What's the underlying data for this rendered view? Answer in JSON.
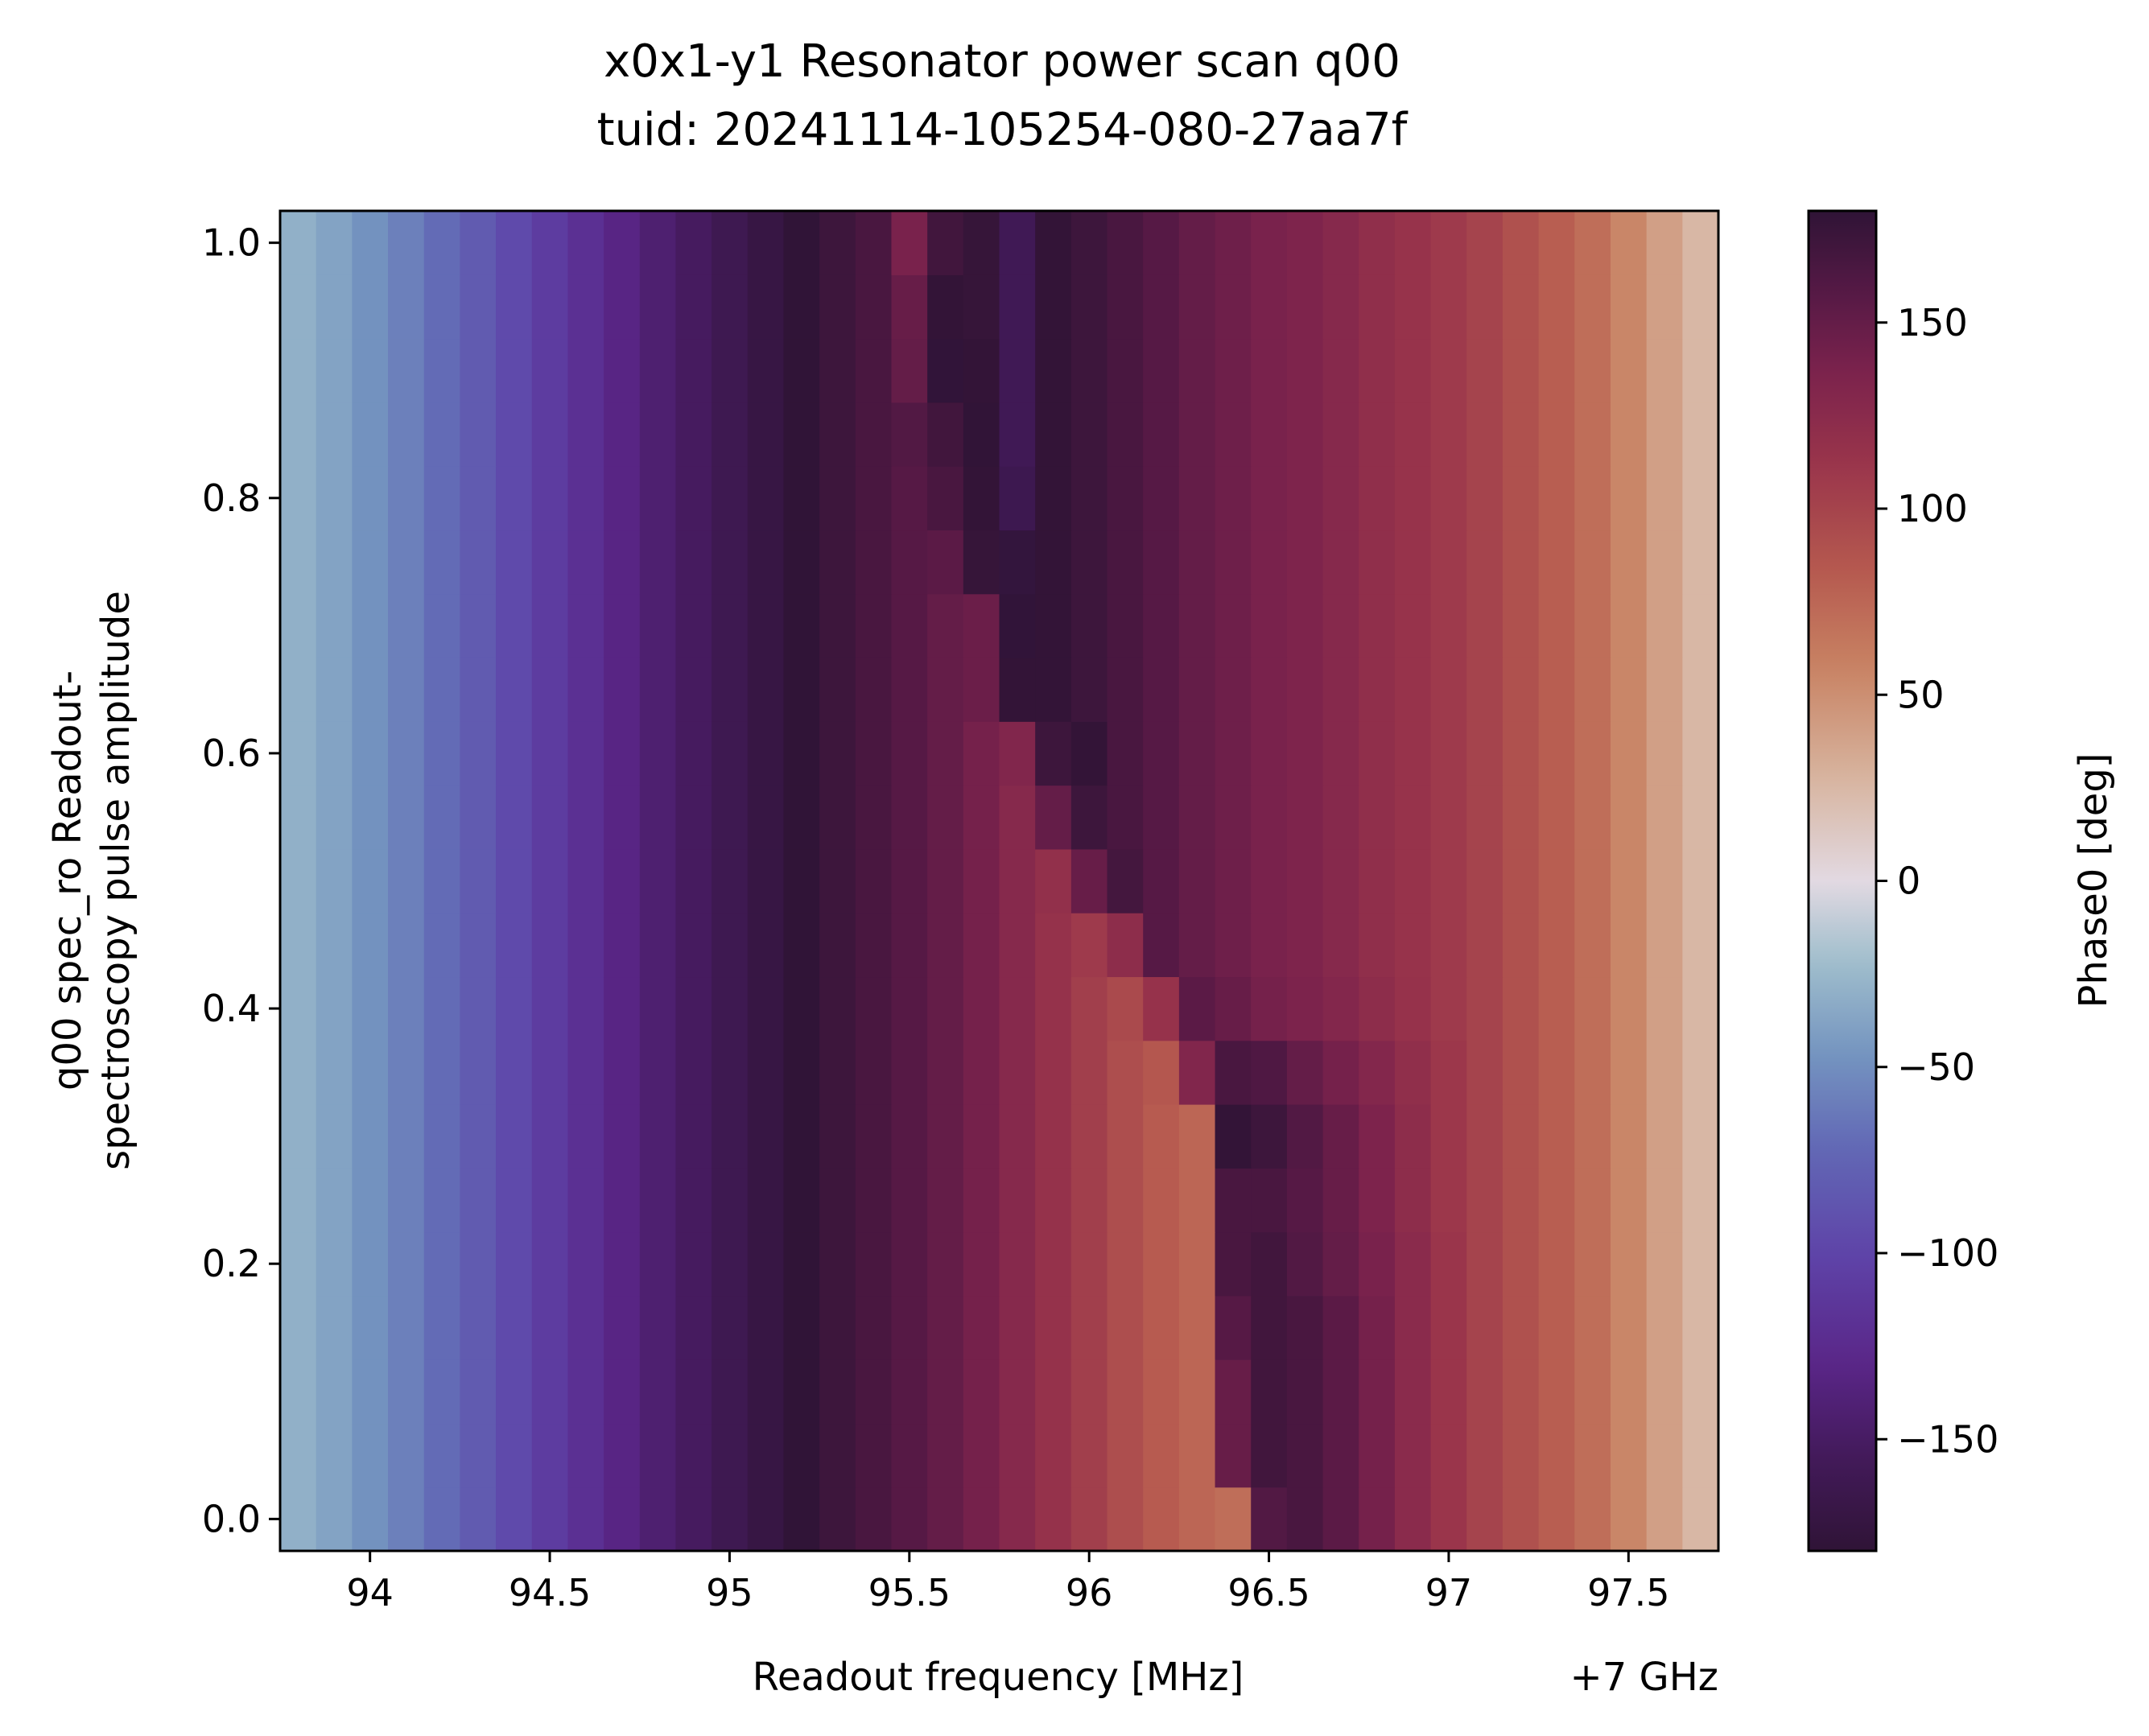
{
  "chart_data": {
    "type": "heatmap",
    "title": [
      "x0x1-y1 Resonator power scan q00",
      "tuid: 20241114-105254-080-27aa7f"
    ],
    "xlabel": "Readout frequency [MHz]",
    "x_offset_label": "+7 GHz",
    "ylabel": [
      "q00 spec_ro Readout-",
      "spectroscopy pulse amplitude"
    ],
    "colorbar_label": "Phase0 [deg]",
    "xlim": [
      93.75,
      97.75
    ],
    "ylim": [
      -0.025,
      1.025
    ],
    "clim": [
      -180,
      180
    ],
    "colormap": "twilight_shifted",
    "x_ticks": [
      94,
      94.5,
      95,
      95.5,
      96,
      96.5,
      97,
      97.5
    ],
    "x_ticklabels": [
      "94",
      "94.5",
      "95",
      "95.5",
      "96",
      "96.5",
      "97",
      "97.5"
    ],
    "y_ticks": [
      0.0,
      0.2,
      0.4,
      0.6,
      0.8,
      1.0
    ],
    "y_ticklabels": [
      "0.0",
      "0.2",
      "0.4",
      "0.6",
      "0.8",
      "1.0"
    ],
    "colorbar_ticks": [
      150,
      100,
      50,
      0,
      -50,
      -100,
      -150
    ],
    "colorbar_ticklabels": [
      "150",
      "100",
      "50",
      "0",
      "−50",
      "−100",
      "−150"
    ],
    "x_start": 93.8,
    "x_step": 0.1,
    "n_x": 40,
    "y_values": [
      0.0,
      0.05,
      0.1,
      0.15,
      0.2,
      0.25,
      0.3,
      0.35,
      0.4,
      0.45,
      0.5,
      0.55,
      0.6,
      0.65,
      0.7,
      0.75,
      0.8,
      0.85,
      0.9,
      0.95,
      1.0
    ],
    "phase_values": [
      [
        -30,
        -38,
        -48,
        -58,
        -70,
        -82,
        -95,
        -108,
        -120,
        -132,
        -143,
        -152,
        -161,
        -170,
        -179,
        172,
        165,
        158,
        150,
        140,
        128,
        116,
        104,
        92,
        82,
        75,
        70,
        160,
        165,
        155,
        140,
        125,
        112,
        100,
        90,
        80,
        70,
        55,
        40,
        25
      ],
      [
        -30,
        -38,
        -48,
        -58,
        -70,
        -82,
        -95,
        -108,
        -120,
        -132,
        -143,
        -152,
        -161,
        -170,
        -179,
        172,
        165,
        158,
        150,
        140,
        128,
        116,
        104,
        92,
        82,
        75,
        148,
        170,
        165,
        155,
        140,
        125,
        112,
        100,
        90,
        80,
        70,
        55,
        40,
        25
      ],
      [
        -30,
        -38,
        -48,
        -58,
        -70,
        -82,
        -95,
        -108,
        -120,
        -132,
        -143,
        -152,
        -161,
        -170,
        -179,
        172,
        165,
        158,
        150,
        140,
        128,
        116,
        104,
        92,
        82,
        75,
        148,
        170,
        165,
        155,
        140,
        125,
        112,
        100,
        90,
        80,
        70,
        55,
        40,
        25
      ],
      [
        -30,
        -38,
        -48,
        -58,
        -70,
        -82,
        -95,
        -108,
        -120,
        -132,
        -143,
        -152,
        -161,
        -170,
        -179,
        172,
        165,
        158,
        150,
        140,
        128,
        116,
        104,
        92,
        82,
        75,
        158,
        170,
        165,
        155,
        140,
        125,
        112,
        100,
        90,
        80,
        70,
        55,
        40,
        25
      ],
      [
        -30,
        -38,
        -48,
        -58,
        -70,
        -82,
        -95,
        -108,
        -120,
        -132,
        -143,
        -152,
        -161,
        -170,
        -179,
        172,
        165,
        158,
        150,
        140,
        128,
        116,
        104,
        92,
        82,
        75,
        165,
        170,
        160,
        150,
        138,
        125,
        112,
        100,
        90,
        80,
        70,
        55,
        40,
        25
      ],
      [
        -30,
        -38,
        -48,
        -58,
        -70,
        -82,
        -95,
        -108,
        -120,
        -132,
        -143,
        -152,
        -161,
        -170,
        -179,
        172,
        165,
        158,
        150,
        140,
        128,
        116,
        104,
        92,
        82,
        75,
        165,
        165,
        158,
        148,
        135,
        122,
        110,
        100,
        90,
        80,
        70,
        55,
        40,
        25
      ],
      [
        -30,
        -38,
        -48,
        -58,
        -70,
        -82,
        -95,
        -108,
        -120,
        -132,
        -143,
        -152,
        -161,
        -170,
        -179,
        172,
        165,
        158,
        150,
        140,
        128,
        116,
        104,
        92,
        82,
        75,
        178,
        172,
        160,
        148,
        135,
        122,
        110,
        100,
        90,
        80,
        70,
        55,
        40,
        25
      ],
      [
        -30,
        -38,
        -48,
        -58,
        -70,
        -82,
        -95,
        -108,
        -120,
        -132,
        -143,
        -152,
        -161,
        -170,
        -179,
        172,
        165,
        158,
        150,
        140,
        128,
        116,
        104,
        92,
        85,
        132,
        165,
        162,
        150,
        140,
        130,
        120,
        110,
        100,
        90,
        80,
        70,
        55,
        40,
        25
      ],
      [
        -30,
        -38,
        -48,
        -58,
        -70,
        -82,
        -95,
        -108,
        -120,
        -132,
        -143,
        -152,
        -161,
        -170,
        -179,
        172,
        165,
        158,
        150,
        140,
        128,
        116,
        104,
        95,
        115,
        155,
        148,
        140,
        136,
        130,
        122,
        115,
        108,
        100,
        90,
        80,
        70,
        55,
        40,
        25
      ],
      [
        -30,
        -38,
        -48,
        -58,
        -70,
        -82,
        -95,
        -108,
        -120,
        -132,
        -143,
        -152,
        -161,
        -170,
        -179,
        172,
        165,
        158,
        150,
        140,
        128,
        116,
        108,
        122,
        158,
        150,
        144,
        138,
        134,
        128,
        120,
        114,
        108,
        100,
        90,
        80,
        70,
        55,
        40,
        25
      ],
      [
        -30,
        -38,
        -48,
        -58,
        -70,
        -82,
        -95,
        -108,
        -120,
        -132,
        -143,
        -152,
        -161,
        -170,
        -179,
        172,
        165,
        158,
        150,
        140,
        128,
        118,
        148,
        168,
        158,
        150,
        144,
        138,
        134,
        128,
        120,
        114,
        108,
        100,
        90,
        80,
        70,
        55,
        40,
        25
      ],
      [
        -30,
        -38,
        -48,
        -58,
        -70,
        -82,
        -95,
        -108,
        -120,
        -132,
        -143,
        -152,
        -161,
        -170,
        -179,
        172,
        165,
        158,
        150,
        140,
        128,
        150,
        172,
        165,
        158,
        150,
        144,
        138,
        134,
        128,
        120,
        114,
        108,
        100,
        90,
        80,
        70,
        55,
        40,
        25
      ],
      [
        -30,
        -38,
        -48,
        -58,
        -70,
        -82,
        -95,
        -108,
        -120,
        -132,
        -143,
        -152,
        -161,
        -170,
        -179,
        172,
        165,
        158,
        150,
        140,
        132,
        172,
        178,
        165,
        158,
        150,
        144,
        138,
        134,
        128,
        120,
        114,
        108,
        100,
        90,
        80,
        70,
        55,
        40,
        25
      ],
      [
        -30,
        -38,
        -48,
        -58,
        -70,
        -82,
        -95,
        -108,
        -120,
        -132,
        -143,
        -152,
        -161,
        -170,
        -179,
        172,
        165,
        158,
        150,
        146,
        178,
        178,
        172,
        165,
        158,
        150,
        144,
        138,
        134,
        128,
        120,
        114,
        108,
        100,
        90,
        80,
        70,
        55,
        40,
        25
      ],
      [
        -30,
        -38,
        -48,
        -58,
        -70,
        -82,
        -95,
        -108,
        -120,
        -132,
        -143,
        -152,
        -161,
        -170,
        -179,
        172,
        165,
        158,
        150,
        146,
        -178,
        178,
        172,
        165,
        158,
        150,
        144,
        138,
        134,
        128,
        120,
        114,
        108,
        100,
        90,
        80,
        70,
        55,
        40,
        25
      ],
      [
        -30,
        -38,
        -48,
        -58,
        -70,
        -82,
        -95,
        -108,
        -120,
        -132,
        -143,
        -152,
        -161,
        -170,
        -179,
        172,
        165,
        158,
        155,
        176,
        -175,
        178,
        172,
        165,
        158,
        150,
        144,
        138,
        134,
        128,
        120,
        114,
        108,
        100,
        90,
        80,
        70,
        55,
        40,
        25
      ],
      [
        -30,
        -38,
        -48,
        -58,
        -70,
        -82,
        -95,
        -108,
        -120,
        -132,
        -143,
        -152,
        -161,
        -170,
        -179,
        172,
        165,
        158,
        165,
        178,
        -162,
        178,
        172,
        165,
        158,
        150,
        144,
        138,
        134,
        128,
        120,
        114,
        108,
        100,
        90,
        80,
        70,
        55,
        40,
        25
      ],
      [
        -30,
        -38,
        -48,
        -58,
        -70,
        -82,
        -95,
        -108,
        -120,
        -132,
        -143,
        -152,
        -161,
        -170,
        -179,
        172,
        165,
        160,
        170,
        179,
        -158,
        178,
        172,
        165,
        158,
        150,
        144,
        138,
        134,
        128,
        120,
        114,
        108,
        100,
        90,
        80,
        70,
        55,
        40,
        25
      ],
      [
        -30,
        -38,
        -48,
        -58,
        -70,
        -82,
        -95,
        -108,
        -120,
        -132,
        -143,
        -152,
        -161,
        -170,
        -179,
        172,
        165,
        150,
        -178,
        178,
        -158,
        178,
        172,
        165,
        158,
        150,
        144,
        138,
        134,
        128,
        120,
        114,
        108,
        100,
        90,
        80,
        70,
        55,
        40,
        25
      ],
      [
        -30,
        -38,
        -48,
        -58,
        -70,
        -82,
        -95,
        -108,
        -120,
        -132,
        -143,
        -152,
        -161,
        -170,
        -179,
        172,
        165,
        148,
        178,
        176,
        -158,
        178,
        172,
        165,
        158,
        150,
        144,
        138,
        134,
        128,
        120,
        114,
        108,
        100,
        90,
        80,
        70,
        55,
        40,
        25
      ],
      [
        -30,
        -38,
        -48,
        -58,
        -70,
        -82,
        -95,
        -108,
        -120,
        -132,
        -143,
        -152,
        -161,
        -170,
        -179,
        172,
        165,
        138,
        170,
        176,
        -158,
        178,
        172,
        165,
        158,
        150,
        144,
        138,
        134,
        128,
        120,
        114,
        108,
        100,
        90,
        80,
        70,
        55,
        40,
        25
      ]
    ]
  }
}
